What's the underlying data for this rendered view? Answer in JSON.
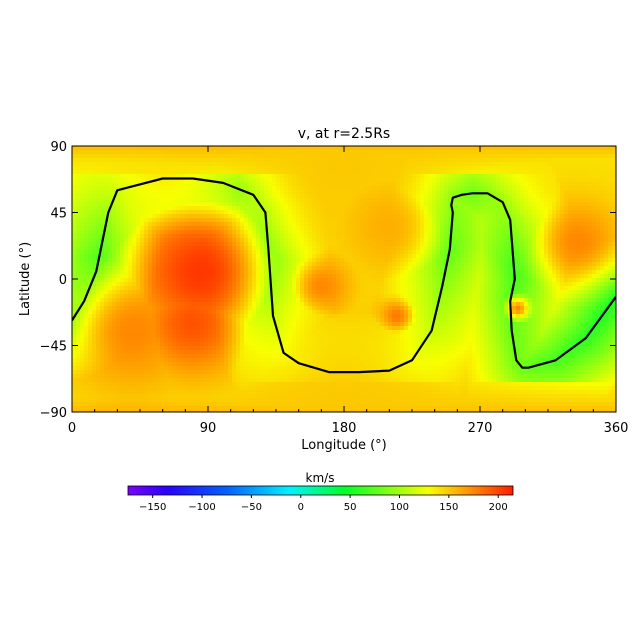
{
  "chart_data": {
    "type": "heatmap",
    "title": "v, at r=2.5Rs",
    "xlabel": "Longitude (°)",
    "ylabel": "Latitude (°)",
    "xlim": [
      0,
      360
    ],
    "ylim": [
      -90,
      90
    ],
    "x_ticks": [
      0,
      90,
      180,
      270,
      360
    ],
    "x_tick_labels": [
      "0",
      "90",
      "180",
      "270",
      "360"
    ],
    "y_ticks": [
      90,
      45,
      0,
      -45,
      -90
    ],
    "y_tick_labels": [
      "90",
      "45",
      "0",
      "−45",
      "−90"
    ],
    "grid": false,
    "colorbar": {
      "label": "km/s",
      "range": [
        -175,
        215
      ],
      "ticks": [
        -150,
        -100,
        -50,
        0,
        50,
        100,
        150,
        200
      ],
      "tick_labels": [
        "−150",
        "−100",
        "−50",
        "0",
        "50",
        "100",
        "150",
        "200"
      ],
      "colormap": "rainbow (violet → blue → cyan → green → yellow → orange → red)",
      "placement": "bottom"
    },
    "features": [
      {
        "lon": 85,
        "lat": 5,
        "value": 205,
        "radius": 32
      },
      {
        "lon": 80,
        "lat": -30,
        "value": 195,
        "radius": 25
      },
      {
        "lon": 40,
        "lat": -35,
        "value": 175,
        "radius": 30
      },
      {
        "lon": 165,
        "lat": -5,
        "value": 175,
        "radius": 15
      },
      {
        "lon": 210,
        "lat": 35,
        "value": 160,
        "radius": 25
      },
      {
        "lon": 215,
        "lat": -25,
        "value": 180,
        "radius": 10
      },
      {
        "lon": 335,
        "lat": 25,
        "value": 175,
        "radius": 20
      },
      {
        "lon": 295,
        "lat": -20,
        "value": 175,
        "radius": 6
      },
      {
        "lon": 270,
        "lat": 25,
        "value": 40,
        "radius": 20
      },
      {
        "lon": 180,
        "lat": 80,
        "value": 150,
        "radius": 60
      },
      {
        "lon": 180,
        "lat": -85,
        "value": 150,
        "radius": 80
      },
      {
        "lon": 60,
        "lat": 85,
        "value": 140,
        "radius": 50
      },
      {
        "lon": 330,
        "lat": 85,
        "value": 140,
        "radius": 50
      }
    ],
    "neutral_line": {
      "label": "",
      "lon": [
        0,
        8,
        16,
        24,
        30,
        60,
        80,
        100,
        120,
        128,
        130,
        133,
        140,
        150,
        170,
        190,
        210,
        225,
        238,
        245,
        250,
        252,
        251,
        252,
        258,
        265,
        275,
        285,
        290,
        293,
        290,
        291,
        294,
        298,
        302,
        320,
        340,
        360
      ],
      "lat": [
        -28,
        -15,
        5,
        45,
        60,
        68,
        68,
        65,
        57,
        45,
        20,
        -25,
        -50,
        -57,
        -63,
        -63,
        -62,
        -55,
        -35,
        -5,
        20,
        45,
        50,
        55,
        57,
        58,
        58,
        52,
        40,
        0,
        -15,
        -35,
        -55,
        -60,
        -60,
        -55,
        -40,
        -12
      ]
    }
  }
}
